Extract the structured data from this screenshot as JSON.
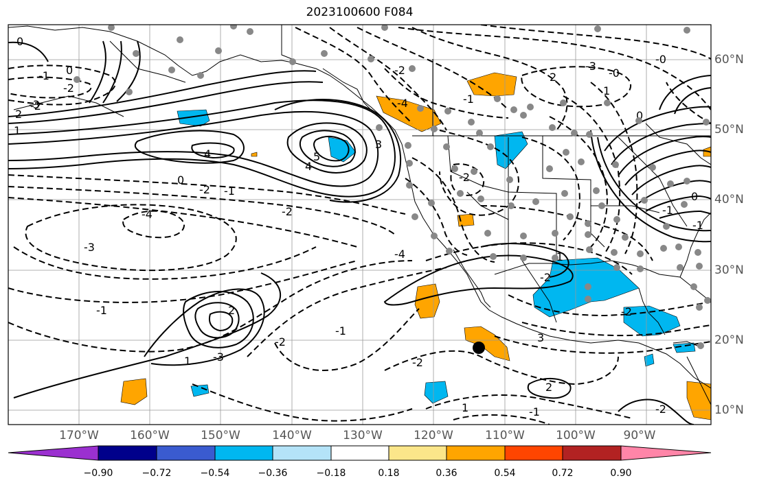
{
  "title": "2023100600 F084",
  "map": {
    "lon_range": [
      -180,
      -81
    ],
    "lat_range": [
      8,
      65
    ],
    "lon_labels": [
      "170°W",
      "160°W",
      "150°W",
      "140°W",
      "130°W",
      "120°W",
      "110°W",
      "100°W",
      "90°W"
    ],
    "lat_labels": [
      "60°N",
      "50°N",
      "40°N",
      "30°N",
      "20°N",
      "10°N"
    ],
    "grid": true,
    "contour_labels": [
      "0",
      "1",
      "2",
      "-3",
      "-2",
      "0",
      "-2",
      "-1",
      "-1",
      "-2",
      "-1",
      "-3",
      "-2",
      "-1",
      "-1",
      "4",
      "5",
      "4",
      "3",
      "0",
      "-2",
      "2",
      "1",
      "-1",
      "-4",
      "-3",
      "-2",
      "-1",
      "-2",
      "-3",
      "-1",
      "-2",
      "-4",
      "-4",
      "-2",
      "-3",
      "-0",
      "-0",
      "2",
      "1",
      "-2",
      "-1",
      "0",
      "-1",
      "0",
      "-1",
      "-2",
      "-1",
      "-2",
      "3",
      "2",
      "1",
      "-1",
      "-2",
      "1",
      "0",
      "-1",
      "2",
      "1",
      "0",
      "1",
      "-1",
      "-2",
      "-1",
      "0",
      "-1",
      "-2",
      "-1"
    ],
    "marker": "black-dot"
  },
  "colorbar": {
    "colors": [
      "#9b30d0",
      "#00008b",
      "#3a5bd0",
      "#00b7f0",
      "#b4e3f8",
      "#ffffff",
      "#fbe68a",
      "#ffa500",
      "#ff4500",
      "#b22222",
      "#ff85a8"
    ],
    "tick_labels": [
      "−0.90",
      "−0.72",
      "−0.54",
      "−0.36",
      "−0.18",
      "0.18",
      "0.36",
      "0.54",
      "0.72",
      "0.90"
    ]
  }
}
